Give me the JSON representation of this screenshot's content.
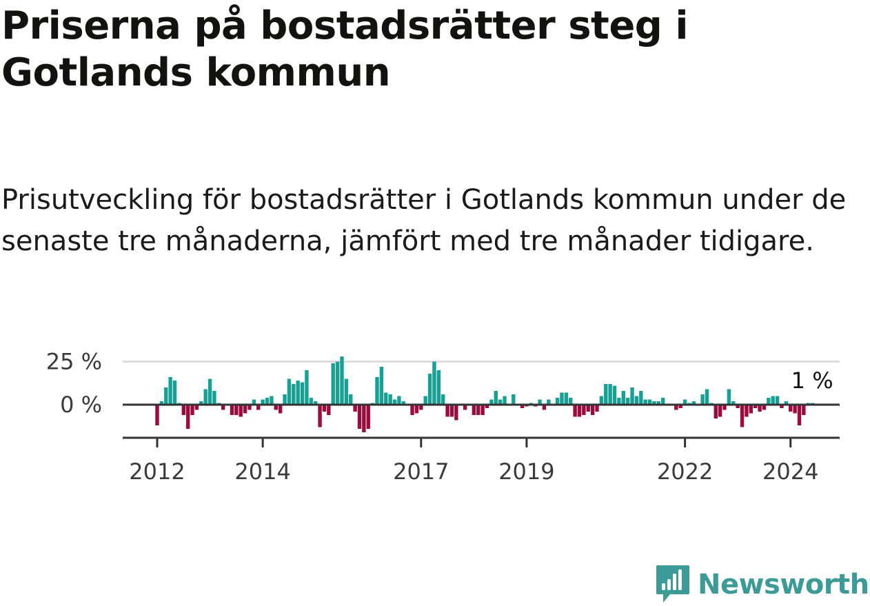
{
  "title": "Priserna på bostadsrätter steg i Gotlands kommun",
  "subtitle": "Prisutveckling för bostadsrätter i Gotlands kommun under de senaste tre månaderna, jämfört med tre månader tidigare.",
  "brand": "Newsworthy",
  "colors": {
    "positive": "#17a096",
    "negative": "#9c0a3e",
    "axis": "#333333",
    "grid": "#dddddd",
    "brand": "#3d9b97"
  },
  "chart_data": {
    "type": "bar",
    "title": "Priserna på bostadsrätter steg i Gotlands kommun",
    "subtitle": "Prisutveckling för bostadsrätter i Gotlands kommun under de senaste tre månaderna, jämfört med tre månader tidigare.",
    "xlabel": "",
    "ylabel": "",
    "ylim": [
      -20,
      27
    ],
    "y_ticks": [
      {
        "value": 0,
        "label": "0 %"
      },
      {
        "value": 25,
        "label": "25 %"
      }
    ],
    "x_ticks": [
      {
        "index": 0,
        "label": "2012"
      },
      {
        "index": 24,
        "label": "2014"
      },
      {
        "index": 60,
        "label": "2017"
      },
      {
        "index": 84,
        "label": "2019"
      },
      {
        "index": 120,
        "label": "2022"
      },
      {
        "index": 144,
        "label": "2024"
      }
    ],
    "grid": true,
    "start": "2012-01",
    "frequency": "monthly",
    "last_value_label": "1 %",
    "series": [
      {
        "values": [
          -12,
          2,
          10,
          16,
          14,
          1,
          -6,
          -14,
          -6,
          -3,
          2,
          9,
          15,
          8,
          1,
          -3,
          0,
          -6,
          -6,
          -7,
          -5,
          -3,
          3,
          -3,
          3,
          4,
          5,
          -3,
          -5,
          6,
          15,
          12,
          14,
          13,
          20,
          4,
          2,
          -13,
          -4,
          -6,
          24,
          25,
          28,
          15,
          6,
          -4,
          -14,
          -16,
          -14,
          1,
          16,
          22,
          7,
          6,
          3,
          5,
          2,
          0,
          -6,
          -5,
          -3,
          5,
          18,
          25,
          20,
          6,
          -7,
          -7,
          -9,
          0,
          -3,
          0,
          -6,
          -6,
          -6,
          -2,
          3,
          8,
          3,
          5,
          0,
          6,
          0,
          -2,
          -1,
          1,
          -1,
          3,
          -3,
          3,
          0,
          4,
          7,
          7,
          4,
          -7,
          -7,
          -6,
          -4,
          -6,
          -4,
          5,
          12,
          12,
          11,
          4,
          8,
          4,
          10,
          5,
          8,
          3,
          3,
          2,
          2,
          4,
          0,
          0,
          -3,
          -2,
          3,
          1,
          2,
          0,
          6,
          9,
          1,
          -8,
          -7,
          -3,
          9,
          2,
          -2,
          -13,
          -7,
          -5,
          -2,
          -4,
          -3,
          4,
          5,
          5,
          -2,
          2,
          -4,
          -5,
          -12,
          -6,
          1,
          1
        ]
      }
    ]
  }
}
